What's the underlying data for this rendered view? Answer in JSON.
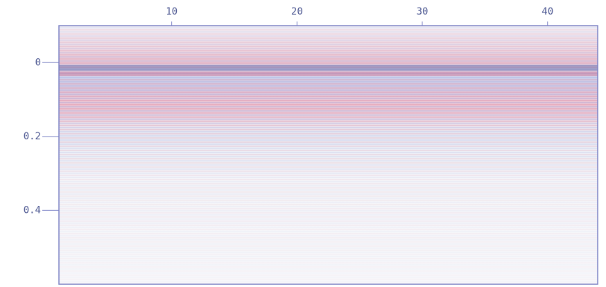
{
  "chart_data": {
    "type": "image",
    "xlim": [
      1,
      44
    ],
    "xticks": [
      10,
      20,
      30,
      40
    ],
    "ylim": [
      -0.1,
      0.6
    ],
    "yticks": [
      0,
      0.2,
      0.4
    ],
    "x_axis_position": "top",
    "y_inverted": true,
    "axis_color": "#7a80c4"
  }
}
